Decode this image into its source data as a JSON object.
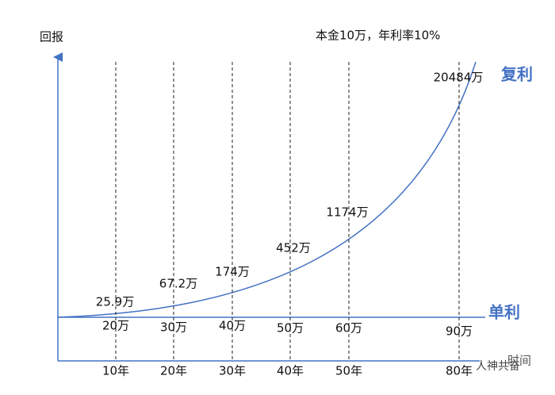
{
  "y_axis_label": "回报",
  "x_axis_label": "时间",
  "note": "本金10万，年利率10%",
  "compound_label": "复利",
  "simple_label": "单利",
  "columns": [
    {
      "year": "10年",
      "compound": "25.9万",
      "simple": "20万"
    },
    {
      "year": "20年",
      "compound": "67.2万",
      "simple": "30万"
    },
    {
      "year": "30年",
      "compound": "174万",
      "simple": "40万"
    },
    {
      "year": "40年",
      "compound": "452万",
      "simple": "50万"
    },
    {
      "year": "50年",
      "compound": "1174万",
      "simple": "60万"
    },
    {
      "year": "80年",
      "compound": "20484万",
      "simple": "90万"
    }
  ],
  "watermark": "人神共奋"
}
